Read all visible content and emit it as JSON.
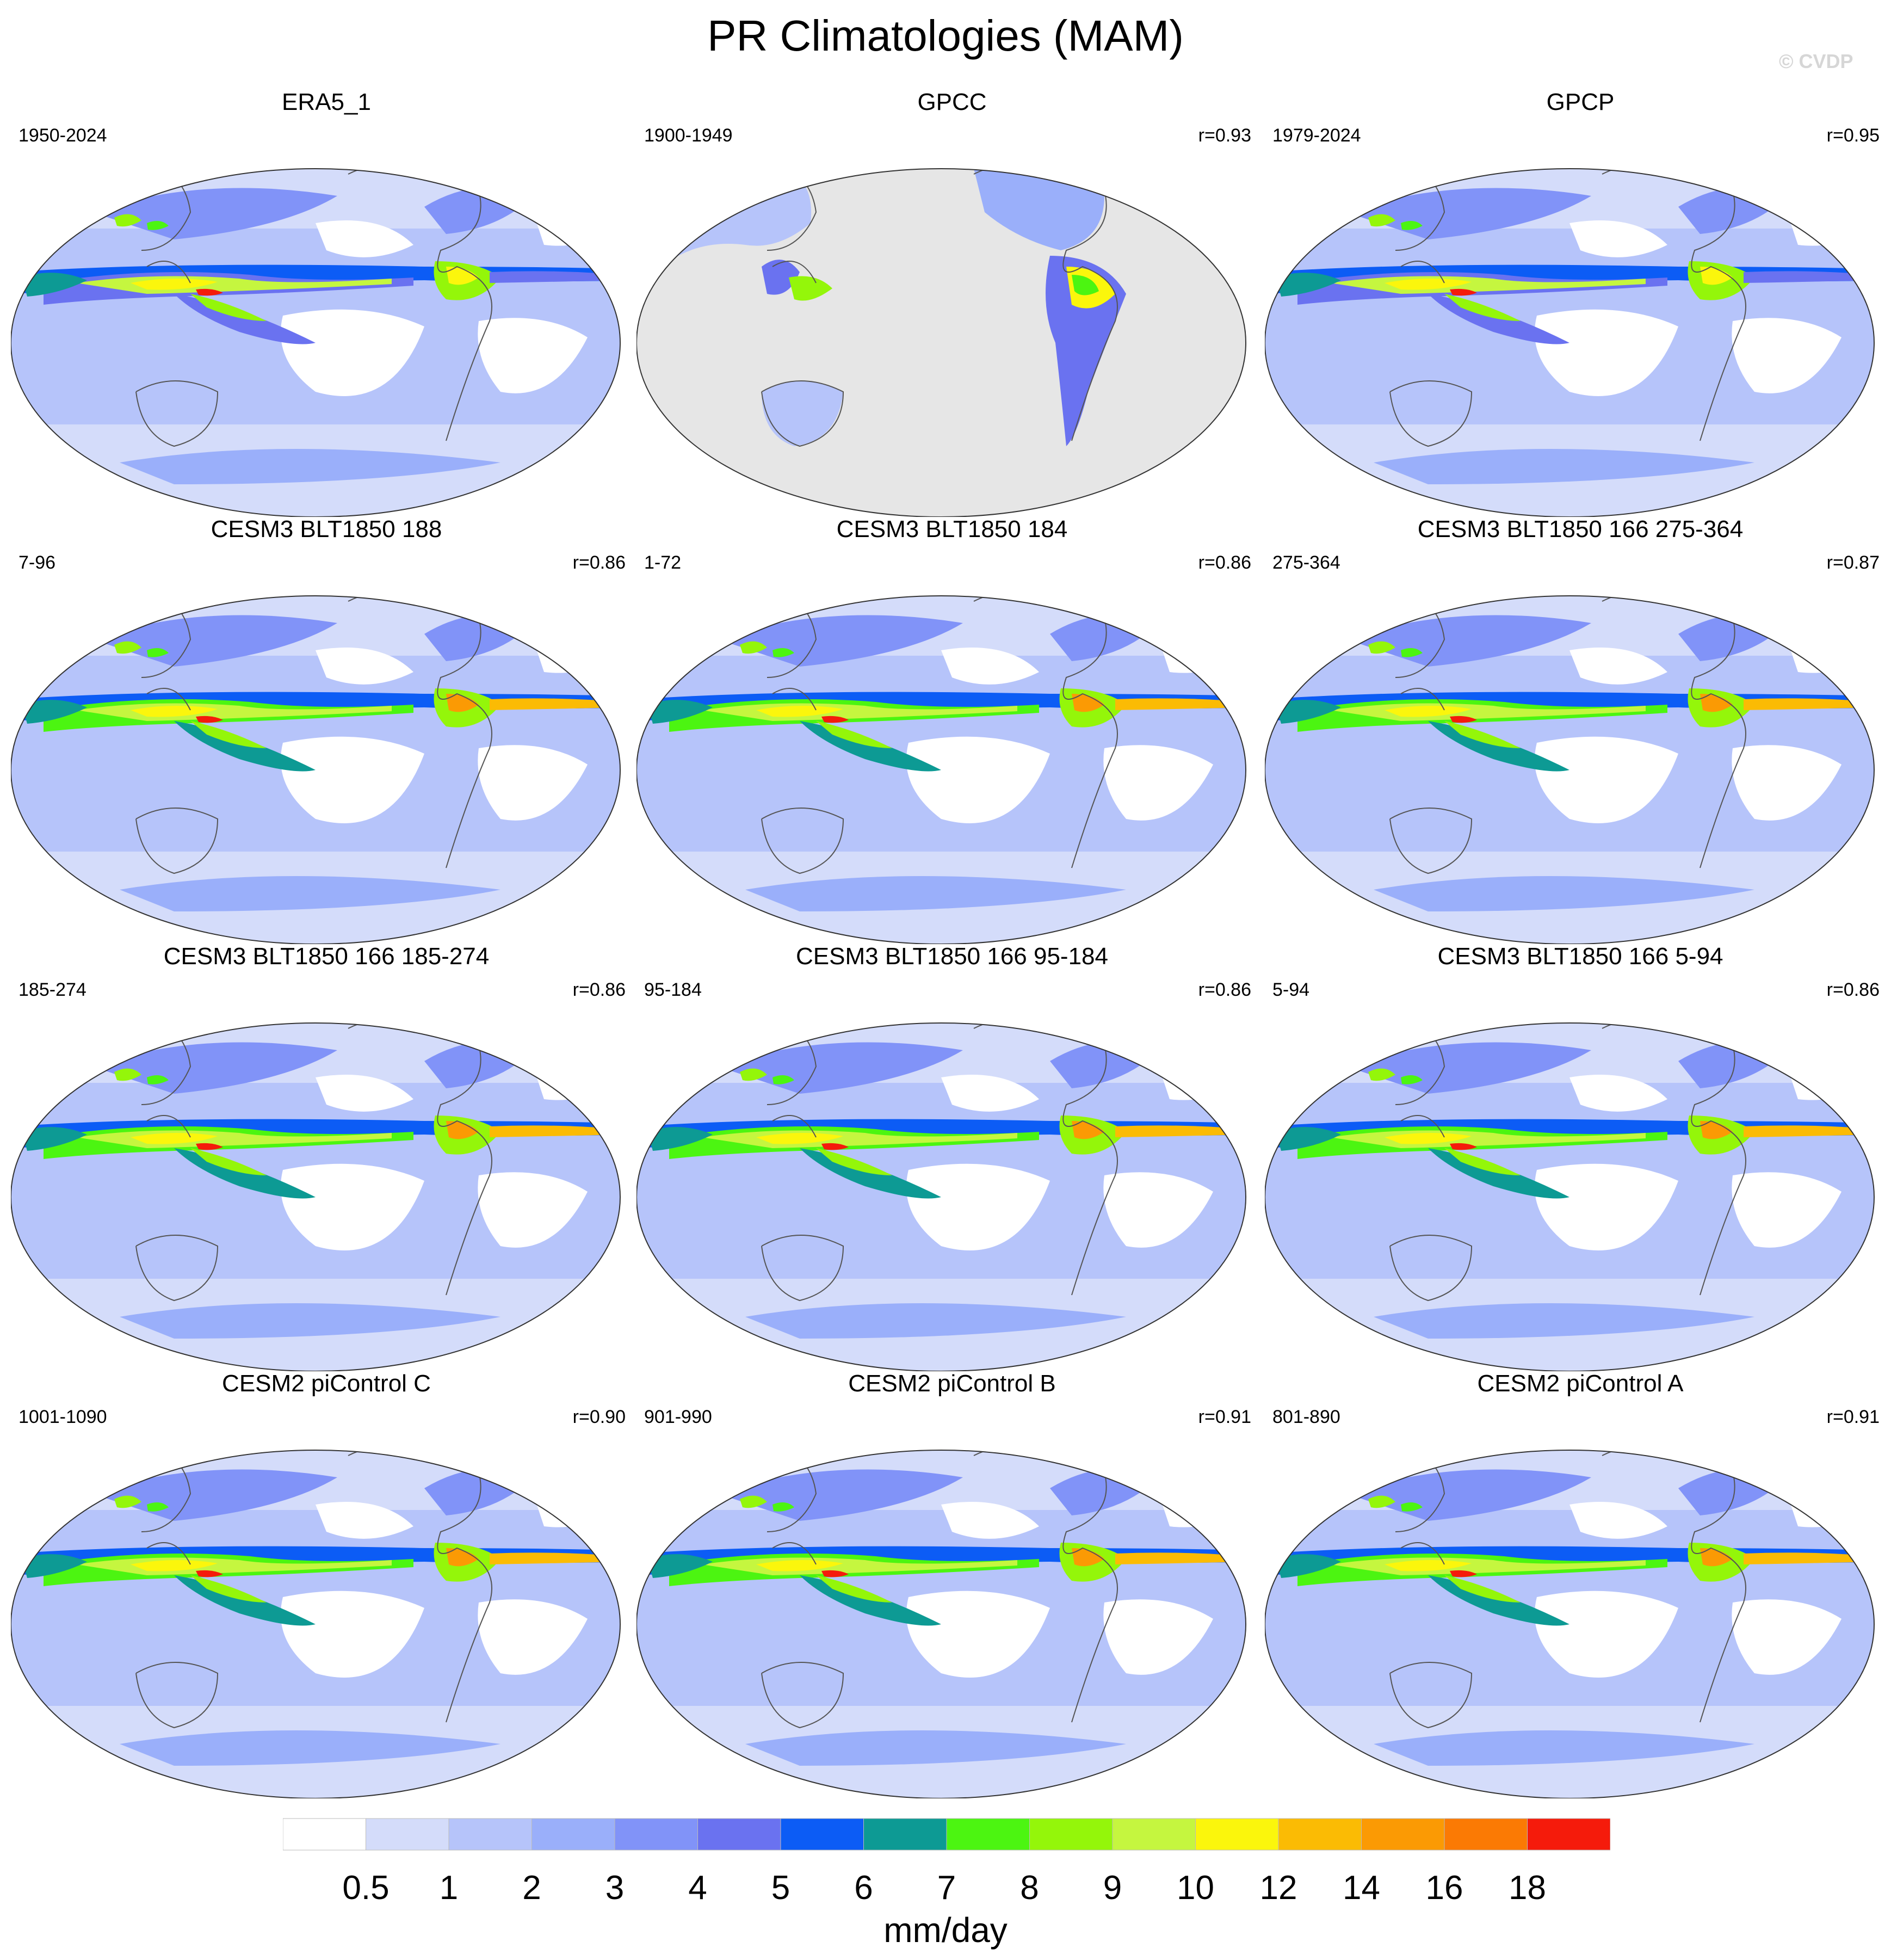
{
  "page": {
    "title": "PR Climatologies (MAM)",
    "credit": "© CVDP"
  },
  "panels": [
    {
      "title": "ERA5_1",
      "years": "1950-2024",
      "corr": "",
      "style": "obs"
    },
    {
      "title": "GPCC",
      "years": "1900-1949",
      "corr": "r=0.93",
      "style": "land"
    },
    {
      "title": "GPCP",
      "years": "1979-2024",
      "corr": "r=0.95",
      "style": "obs"
    },
    {
      "title": "CESM3 BLT1850 188",
      "years": "7-96",
      "corr": "r=0.86",
      "style": "model"
    },
    {
      "title": "CESM3 BLT1850 184",
      "years": "1-72",
      "corr": "r=0.86",
      "style": "model"
    },
    {
      "title": "CESM3 BLT1850 166 275-364",
      "years": "275-364",
      "corr": "r=0.87",
      "style": "model"
    },
    {
      "title": "CESM3 BLT1850 166 185-274",
      "years": "185-274",
      "corr": "r=0.86",
      "style": "model"
    },
    {
      "title": "CESM3 BLT1850 166 95-184",
      "years": "95-184",
      "corr": "r=0.86",
      "style": "model"
    },
    {
      "title": "CESM3 BLT1850 166 5-94",
      "years": "5-94",
      "corr": "r=0.86",
      "style": "model"
    },
    {
      "title": "CESM2 piControl C",
      "years": "1001-1090",
      "corr": "r=0.90",
      "style": "model2"
    },
    {
      "title": "CESM2 piControl B",
      "years": "901-990",
      "corr": "r=0.91",
      "style": "model2"
    },
    {
      "title": "CESM2 piControl A",
      "years": "801-890",
      "corr": "r=0.91",
      "style": "model2"
    }
  ],
  "colorbar": {
    "units": "mm/day",
    "labels": [
      "0.5",
      "1",
      "2",
      "3",
      "4",
      "5",
      "6",
      "7",
      "8",
      "9",
      "10",
      "12",
      "14",
      "16",
      "18"
    ],
    "colors": [
      "#ffffff",
      "#d4dcfa",
      "#b6c4fa",
      "#9aaffa",
      "#8193f8",
      "#6a72f0",
      "#0c5cf5",
      "#0d9a94",
      "#4cf511",
      "#94f60a",
      "#c5f63f",
      "#fbf60c",
      "#fbbb04",
      "#fb9a04",
      "#fb7a04",
      "#f51b0b"
    ]
  }
}
